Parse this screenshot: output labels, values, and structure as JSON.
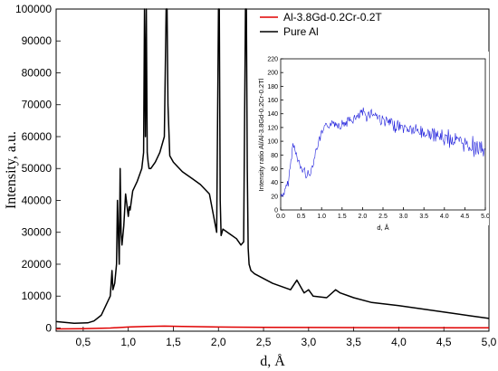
{
  "chart_data": [
    {
      "type": "line",
      "xlabel": "d, Å",
      "ylabel": "Intensity, a.u.",
      "xlim": [
        0.2,
        5.0
      ],
      "ylim": [
        -1000,
        100000
      ],
      "x_ticks": [
        "0,5",
        "1,0",
        "1,5",
        "2,0",
        "2,5",
        "3,0",
        "3,5",
        "4,0",
        "4,5",
        "5,0"
      ],
      "y_ticks": [
        "0",
        "10000",
        "20000",
        "30000",
        "40000",
        "50000",
        "60000",
        "70000",
        "80000",
        "90000",
        "100000"
      ],
      "legend_position": "top-right",
      "grid": false,
      "series": [
        {
          "name": "Al-3.8Gd-0.2Cr-0.2T",
          "color": "#e00000",
          "x": [
            0.2,
            0.5,
            0.8,
            1.0,
            1.2,
            1.4,
            1.6,
            2.0,
            2.5,
            3.0,
            4.0,
            5.0
          ],
          "y": [
            -300,
            -200,
            0,
            300,
            500,
            600,
            500,
            300,
            200,
            150,
            100,
            50
          ]
        },
        {
          "name": "Pure Al",
          "color": "#000000",
          "x": [
            0.2,
            0.4,
            0.55,
            0.62,
            0.7,
            0.75,
            0.8,
            0.82,
            0.83,
            0.85,
            0.87,
            0.88,
            0.9,
            0.91,
            0.92,
            0.93,
            0.95,
            0.97,
            1.0,
            1.01,
            1.02,
            1.05,
            1.1,
            1.15,
            1.17,
            1.18,
            1.19,
            1.2,
            1.21,
            1.22,
            1.23,
            1.25,
            1.3,
            1.35,
            1.4,
            1.42,
            1.43,
            1.44,
            1.46,
            1.5,
            1.6,
            1.7,
            1.8,
            1.9,
            1.98,
            2.0,
            2.01,
            2.02,
            2.03,
            2.05,
            2.1,
            2.2,
            2.25,
            2.28,
            2.3,
            2.31,
            2.32,
            2.33,
            2.34,
            2.36,
            2.4,
            2.6,
            2.8,
            2.87,
            2.95,
            3.0,
            3.05,
            3.2,
            3.3,
            3.35,
            3.5,
            3.7,
            4.0,
            4.3,
            4.6,
            4.8,
            5.0
          ],
          "y": [
            2000,
            1500,
            1600,
            2200,
            4000,
            7000,
            10000,
            18000,
            12000,
            14000,
            20000,
            40000,
            20000,
            50000,
            30000,
            26000,
            32000,
            42000,
            35000,
            38000,
            37000,
            43000,
            46000,
            50000,
            55000,
            100000,
            60000,
            100000,
            55000,
            52000,
            50000,
            50000,
            52000,
            55000,
            60000,
            100000,
            100000,
            70000,
            54000,
            52000,
            49000,
            47000,
            45000,
            42000,
            30000,
            100000,
            100000,
            40000,
            29000,
            31000,
            30000,
            28000,
            26000,
            27000,
            100000,
            100000,
            50000,
            25000,
            20000,
            18000,
            17000,
            14000,
            12000,
            15000,
            11000,
            12000,
            10000,
            9500,
            12000,
            11000,
            9500,
            8000,
            7000,
            5800,
            4600,
            3800,
            3000
          ]
        }
      ]
    },
    {
      "type": "line",
      "xlabel": "d, Å",
      "ylabel": "Intensity ratio Al/Al-3.8Gd-0.2Cr-0.2Tl",
      "xlim": [
        0.0,
        5.0
      ],
      "ylim": [
        0,
        220
      ],
      "x_ticks": [
        "0.0",
        "0.5",
        "1.0",
        "1.5",
        "2.0",
        "2.5",
        "3.0",
        "3.5",
        "4.0",
        "4.5",
        "5.0"
      ],
      "y_ticks": [
        "0",
        "20",
        "40",
        "60",
        "80",
        "100",
        "120",
        "140",
        "160",
        "180",
        "200",
        "220"
      ],
      "series": [
        {
          "color": "#1f1fdc",
          "x": [
            0.0,
            0.1,
            0.2,
            0.3,
            0.35,
            0.4,
            0.5,
            0.6,
            0.7,
            0.8,
            0.9,
            1.0,
            1.1,
            1.2,
            1.3,
            1.4,
            1.5,
            1.6,
            1.7,
            1.8,
            1.9,
            2.0,
            2.1,
            2.2,
            2.3,
            2.4,
            2.5,
            2.7,
            3.0,
            3.3,
            3.6,
            4.0,
            4.3,
            4.6,
            5.0
          ],
          "y": [
            20,
            25,
            45,
            95,
            90,
            75,
            60,
            55,
            50,
            70,
            95,
            110,
            120,
            125,
            127,
            125,
            125,
            128,
            130,
            132,
            135,
            140,
            138,
            142,
            140,
            135,
            130,
            125,
            120,
            115,
            110,
            105,
            100,
            95,
            85
          ]
        }
      ]
    }
  ],
  "legend": [
    {
      "label": "Al-3.8Gd-0.2Cr-0.2T",
      "color": "#e00000"
    },
    {
      "label": "Pure Al",
      "color": "#000000"
    }
  ]
}
